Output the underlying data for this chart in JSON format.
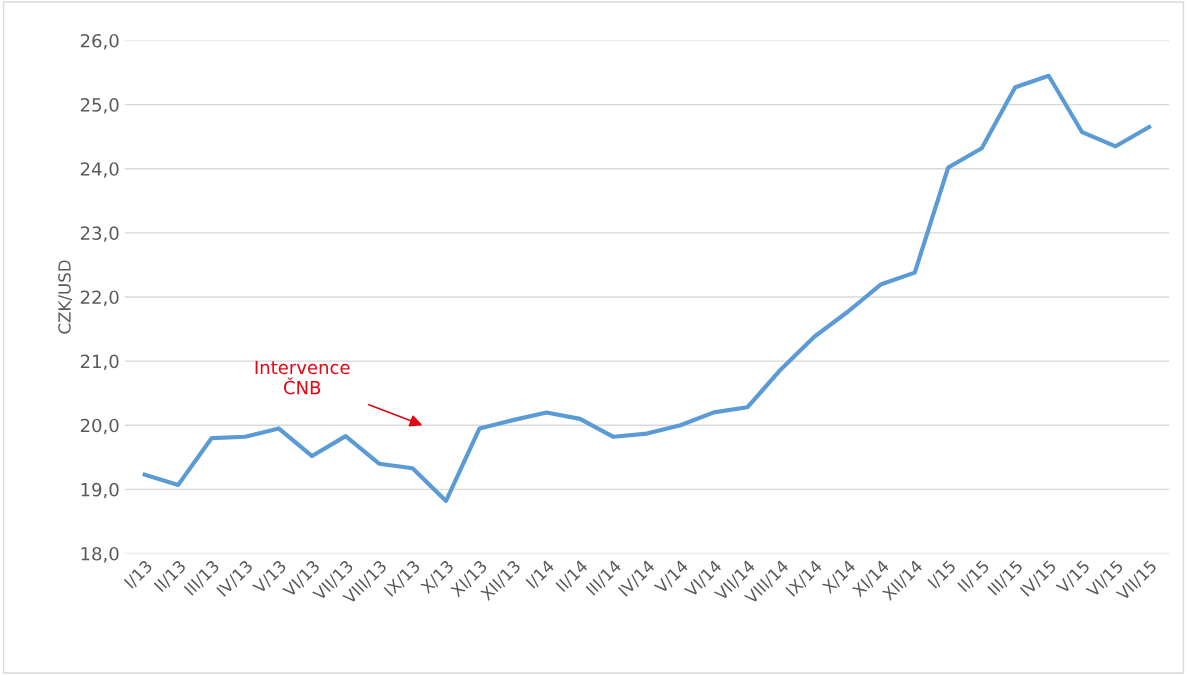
{
  "chart_data": {
    "type": "line",
    "ylabel": "CZK/USD",
    "categories": [
      "I/13",
      "II/13",
      "III/13",
      "IV/13",
      "V/13",
      "VI/13",
      "VII/13",
      "VIII/13",
      "IX/13",
      "X/13",
      "XI/13",
      "XII/13",
      "I/14",
      "II/14",
      "III/14",
      "IV/14",
      "V/14",
      "VI/14",
      "VII/14",
      "VIII/14",
      "IX/14",
      "X/14",
      "XI/14",
      "XII/14",
      "I/15",
      "II/15",
      "III/15",
      "IV/15",
      "V/15",
      "VI/15",
      "VII/15"
    ],
    "series": [
      {
        "color": "#5b9bd5",
        "values": [
          19.23,
          19.07,
          19.8,
          19.82,
          19.95,
          19.52,
          19.83,
          19.4,
          19.33,
          18.82,
          19.95,
          20.08,
          20.2,
          20.1,
          19.82,
          19.87,
          20.0,
          20.2,
          20.28,
          20.87,
          21.38,
          21.77,
          22.2,
          22.38,
          24.02,
          24.32,
          25.27,
          25.45,
          24.57,
          24.35,
          24.65
        ]
      }
    ],
    "ylim": [
      18,
      26
    ],
    "yticks": [
      {
        "value": 18,
        "label": "18,0"
      },
      {
        "value": 19,
        "label": "19,0"
      },
      {
        "value": 20,
        "label": "20,0"
      },
      {
        "value": 21,
        "label": "21,0"
      },
      {
        "value": 22,
        "label": "22,0"
      },
      {
        "value": 23,
        "label": "23,0"
      },
      {
        "value": 24,
        "label": "24,0"
      },
      {
        "value": 25,
        "label": "25,0"
      },
      {
        "value": 26,
        "label": "26,0"
      }
    ],
    "grid": "y",
    "marker": "none",
    "line_style": "solid",
    "annotations": [
      "Intervence\nČNB"
    ]
  }
}
